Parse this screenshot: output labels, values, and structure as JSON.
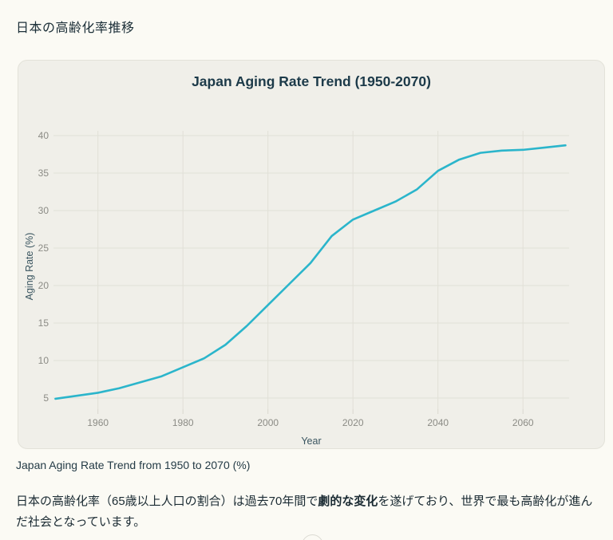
{
  "page": {
    "heading": "日本の高齢化率推移",
    "caption": "Japan Aging Rate Trend from 1950 to 2070 (%)",
    "paragraph": {
      "pre": "日本の高齢化率（65歳以上人口の割合）は過去70年間で",
      "bold": "劇的な変化",
      "post": "を遂げており、世界で最も高齢化が進んだ社会となっています。"
    }
  },
  "colors": {
    "page_bg": "#fbfaf4",
    "card_bg": "#f0efe9",
    "card_border": "#e3e2d9",
    "gridline": "#e1e0d7",
    "tick_text": "#8b8b85",
    "axis_name_text": "#3a5560",
    "title_text": "#1c3a49",
    "body_text": "#1b2b33",
    "line": "#2bb5cb"
  },
  "chart_data": {
    "type": "line",
    "title": "Japan Aging Rate Trend (1950-2070)",
    "xlabel": "Year",
    "ylabel": "Aging Rate (%)",
    "x": [
      1950,
      1955,
      1960,
      1965,
      1970,
      1975,
      1980,
      1985,
      1990,
      1995,
      2000,
      2005,
      2010,
      2015,
      2020,
      2025,
      2030,
      2035,
      2040,
      2045,
      2050,
      2055,
      2060,
      2065,
      2070
    ],
    "values": [
      4.9,
      5.3,
      5.7,
      6.3,
      7.1,
      7.9,
      9.1,
      10.3,
      12.1,
      14.6,
      17.4,
      20.2,
      23.0,
      26.6,
      28.8,
      30.0,
      31.2,
      32.8,
      35.3,
      36.8,
      37.7,
      38.0,
      38.1,
      38.4,
      38.7
    ],
    "series_color": "#2bb5cb",
    "xticks": [
      1960,
      1980,
      2000,
      2020,
      2040,
      2060
    ],
    "yticks": [
      5,
      10,
      15,
      20,
      25,
      30,
      35,
      40
    ],
    "xlim": [
      1950,
      2070
    ],
    "ylim": [
      3.5,
      41.2
    ],
    "grid": true,
    "legend": false
  }
}
